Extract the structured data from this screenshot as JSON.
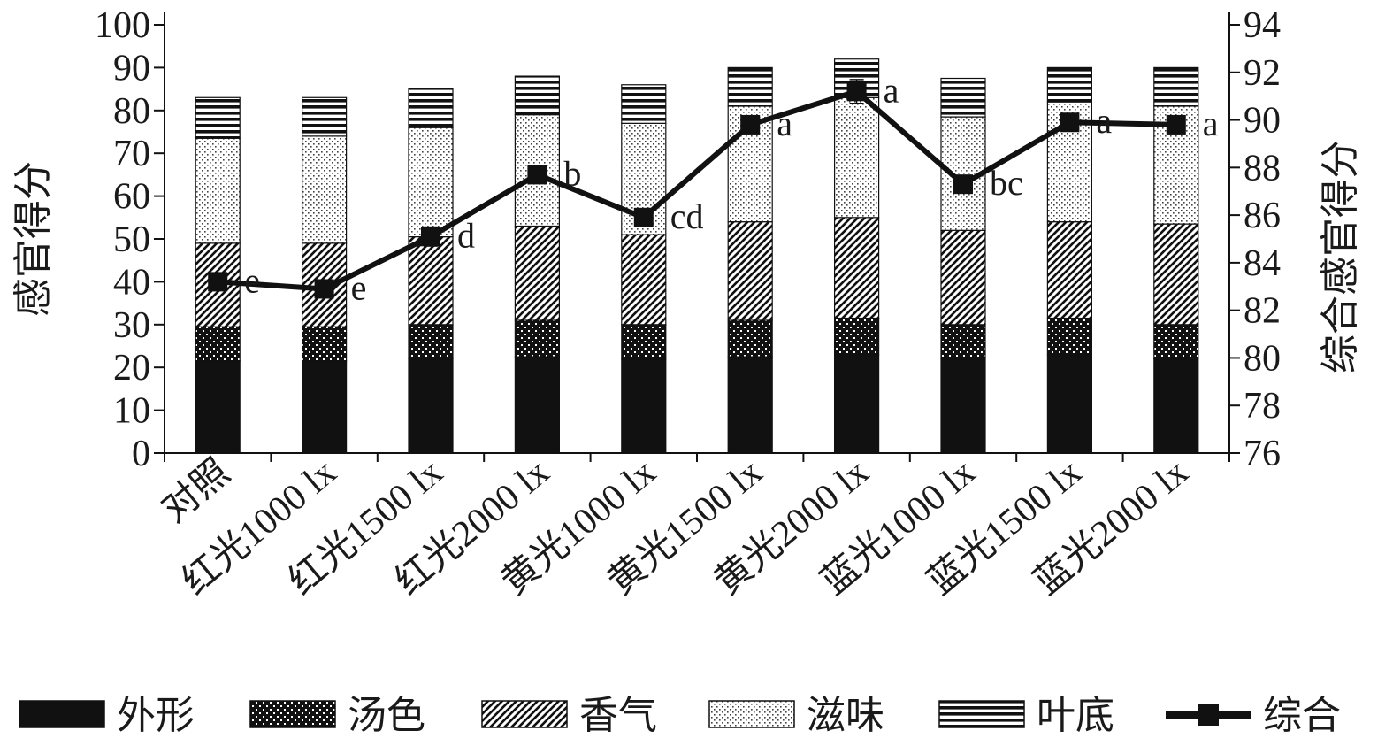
{
  "chart_data": {
    "type": "bar",
    "stacked": true,
    "categories": [
      "对照",
      "红光1000 lx",
      "红光1500 lx",
      "红光2000 lx",
      "黄光1000 lx",
      "黄光1500 lx",
      "黄光2000 lx",
      "蓝光1000 lx",
      "蓝光1500 lx",
      "蓝光2000 lx"
    ],
    "series": [
      {
        "name": "外形",
        "pattern": "solid",
        "values": [
          21.5,
          21.5,
          22,
          22.5,
          22,
          22.5,
          23,
          22,
          23,
          22
        ]
      },
      {
        "name": "汤色",
        "pattern": "dots",
        "values": [
          8,
          8,
          8,
          8.5,
          8,
          8.5,
          8.5,
          8,
          8.5,
          8
        ]
      },
      {
        "name": "香气",
        "pattern": "diagonal",
        "values": [
          19.5,
          19.5,
          20.5,
          22,
          21,
          23,
          23.5,
          22,
          22.5,
          23.5
        ]
      },
      {
        "name": "滋味",
        "pattern": "stipple",
        "values": [
          24.5,
          25,
          25.5,
          26,
          26,
          27,
          28,
          26.5,
          28,
          27.5
        ]
      },
      {
        "name": "叶底",
        "pattern": "hlines",
        "values": [
          9.5,
          9,
          9,
          9,
          9,
          9,
          9,
          9,
          8,
          9
        ]
      }
    ],
    "line_series": {
      "name": "综合",
      "axis": "right",
      "values": [
        83.2,
        82.9,
        85.1,
        87.7,
        85.9,
        89.8,
        91.2,
        87.3,
        89.9,
        89.8
      ],
      "errors": [
        0.3,
        0.3,
        0.4,
        0.3,
        0.3,
        0.3,
        0.5,
        0.3,
        0.3,
        0.3
      ],
      "significance": [
        "e",
        "e",
        "d",
        "b",
        "cd",
        "a",
        "a",
        "bc",
        "a",
        "a"
      ]
    },
    "ylabel": "感官得分",
    "y2label": "综合感官得分",
    "ylim": [
      0,
      100
    ],
    "yticks": [
      "0",
      "10",
      "20",
      "30",
      "40",
      "50",
      "60",
      "70",
      "80",
      "90",
      "100"
    ],
    "y2lim": [
      76,
      94
    ],
    "y2ticks": [
      "76",
      "78",
      "80",
      "82",
      "84",
      "86",
      "88",
      "90",
      "92",
      "94"
    ],
    "legend_placement": "bottom",
    "legend": [
      "外形",
      "汤色",
      "香气",
      "滋味",
      "叶底",
      "综合"
    ],
    "grid": false
  }
}
